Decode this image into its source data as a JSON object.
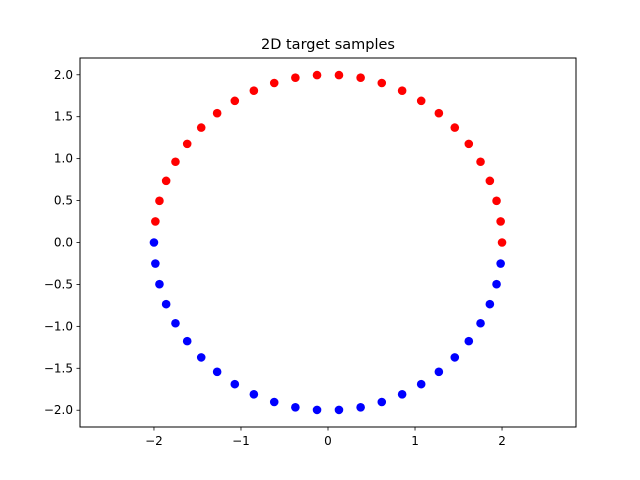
{
  "chart_data": {
    "type": "scatter",
    "title": "2D target samples",
    "xlabel": "",
    "ylabel": "",
    "xlim": [
      -2.85,
      2.85
    ],
    "ylim": [
      -2.2,
      2.2
    ],
    "xticks": [
      -2,
      -1,
      0,
      1,
      2
    ],
    "yticks": [
      -2.0,
      -1.5,
      -1.0,
      -0.5,
      0.0,
      0.5,
      1.0,
      1.5,
      2.0
    ],
    "xtick_labels": [
      "−2",
      "−1",
      "0",
      "1",
      "2"
    ],
    "ytick_labels": [
      "−2.0",
      "−1.5",
      "−1.0",
      "−0.5",
      "0.0",
      "0.5",
      "1.0",
      "1.5",
      "2.0"
    ],
    "grid": false,
    "legend": "none",
    "series": [
      {
        "color": "#ff0000",
        "points": [
          [
            2.0,
            0.0
          ],
          [
            1.984,
            0.251
          ],
          [
            1.937,
            0.497
          ],
          [
            1.86,
            0.735
          ],
          [
            1.753,
            0.963
          ],
          [
            1.618,
            1.176
          ],
          [
            1.457,
            1.37
          ],
          [
            1.274,
            1.542
          ],
          [
            1.071,
            1.689
          ],
          [
            0.852,
            1.81
          ],
          [
            0.618,
            1.902
          ],
          [
            0.375,
            1.965
          ],
          [
            0.126,
            1.996
          ],
          [
            -0.126,
            1.996
          ],
          [
            -0.375,
            1.965
          ],
          [
            -0.618,
            1.902
          ],
          [
            -0.852,
            1.81
          ],
          [
            -1.071,
            1.689
          ],
          [
            -1.274,
            1.542
          ],
          [
            -1.457,
            1.37
          ],
          [
            -1.618,
            1.176
          ],
          [
            -1.753,
            0.963
          ],
          [
            -1.86,
            0.735
          ],
          [
            -1.937,
            0.497
          ],
          [
            -1.984,
            0.251
          ]
        ]
      },
      {
        "color": "#0000ff",
        "points": [
          [
            -2.0,
            0.0
          ],
          [
            -1.984,
            -0.251
          ],
          [
            -1.937,
            -0.497
          ],
          [
            -1.86,
            -0.735
          ],
          [
            -1.753,
            -0.963
          ],
          [
            -1.618,
            -1.176
          ],
          [
            -1.457,
            -1.37
          ],
          [
            -1.274,
            -1.542
          ],
          [
            -1.071,
            -1.689
          ],
          [
            -0.852,
            -1.81
          ],
          [
            -0.618,
            -1.902
          ],
          [
            -0.375,
            -1.965
          ],
          [
            -0.126,
            -1.996
          ],
          [
            0.126,
            -1.996
          ],
          [
            0.375,
            -1.965
          ],
          [
            0.618,
            -1.902
          ],
          [
            0.852,
            -1.81
          ],
          [
            1.071,
            -1.689
          ],
          [
            1.274,
            -1.542
          ],
          [
            1.457,
            -1.37
          ],
          [
            1.618,
            -1.176
          ],
          [
            1.753,
            -0.963
          ],
          [
            1.86,
            -0.735
          ],
          [
            1.937,
            -0.497
          ],
          [
            1.984,
            -0.251
          ]
        ]
      }
    ]
  }
}
